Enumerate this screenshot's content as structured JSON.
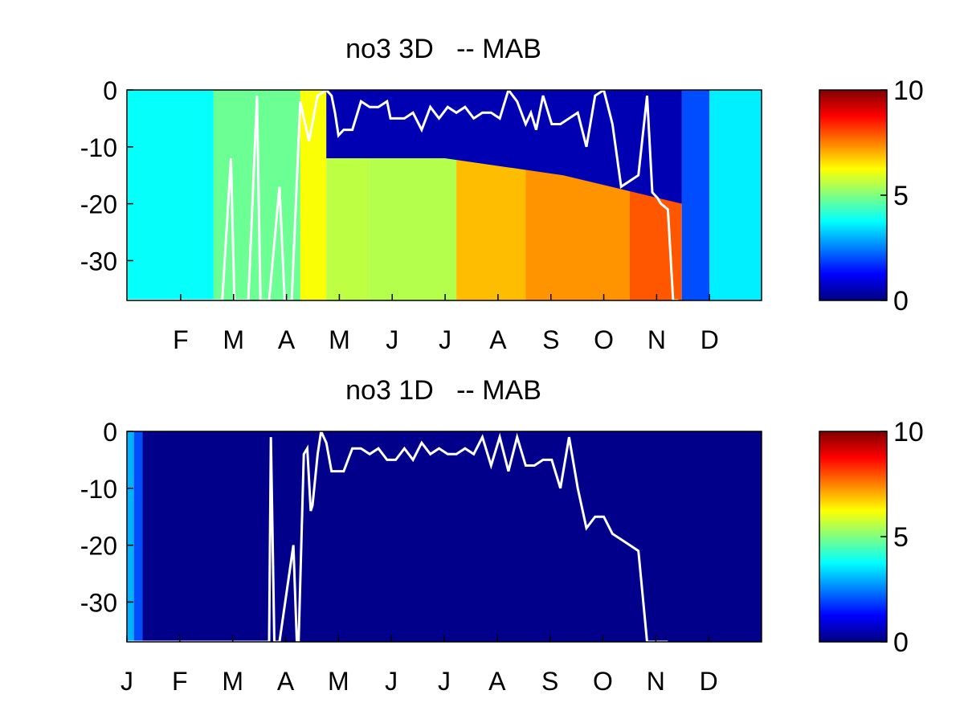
{
  "chart_data": [
    {
      "type": "heatmap",
      "title": "no3 3D   -- MAB",
      "ylim": [
        -37,
        0
      ],
      "y_ticks": [
        "0",
        "-10",
        "-20",
        "-30"
      ],
      "x_ticks": [
        "F",
        "M",
        "A",
        "M",
        "J",
        "J",
        "A",
        "S",
        "O",
        "N",
        "D"
      ],
      "colorbar": {
        "range": [
          0,
          10
        ],
        "ticks": [
          "10",
          "5",
          "0"
        ],
        "colormap": "jet"
      },
      "grid": false,
      "heatmap_columns": [
        {
          "days": [
            0,
            50
          ],
          "value": 3.8
        },
        {
          "days": [
            50,
            100
          ],
          "value": 4.8
        },
        {
          "days": [
            100,
            115
          ],
          "value": 6.2
        },
        {
          "days": [
            115,
            140
          ],
          "value": 5.6
        },
        {
          "days": [
            140,
            190
          ],
          "value": 5.5
        },
        {
          "days": [
            190,
            230
          ],
          "value": 6.9
        },
        {
          "days": [
            230,
            290
          ],
          "value": 7.3
        },
        {
          "days": [
            290,
            320
          ],
          "value": 7.9
        },
        {
          "days": [
            320,
            336
          ],
          "value": 2.0
        },
        {
          "days": [
            336,
            366
          ],
          "value": 3.6
        }
      ],
      "surface_low_layer": {
        "days": [
          115,
          320
        ],
        "depths": [
          0,
          -12,
          -15,
          -20
        ],
        "value": 0.5
      },
      "mixed_layer_depth": {
        "days": [
          0,
          55,
          60,
          62,
          70,
          75,
          77,
          82,
          88,
          91,
          95,
          100,
          105,
          110,
          115,
          118,
          120,
          122,
          125,
          130,
          135,
          140,
          145,
          150,
          152,
          160,
          165,
          170,
          175,
          180,
          185,
          190,
          195,
          200,
          205,
          210,
          215,
          220,
          225,
          230,
          233,
          236,
          240,
          245,
          250,
          255,
          260,
          265,
          270,
          275,
          280,
          285,
          290,
          295,
          300,
          303,
          306,
          308,
          312,
          315,
          318
        ],
        "depth": [
          -37,
          -37,
          -12,
          -37,
          -37,
          -1,
          -37,
          -37,
          -17,
          -37,
          -37,
          -2,
          -9,
          -1,
          0,
          -1,
          -4,
          -8,
          -7,
          -7,
          -2,
          -3,
          -3,
          -2,
          -5,
          -5,
          -4,
          -7,
          -3,
          -5,
          -3,
          -4,
          -3,
          -5,
          -4,
          -4,
          -5,
          0,
          -2,
          -6,
          -4,
          -7,
          -1,
          -6,
          -6,
          -5,
          -4,
          -10,
          -1,
          0,
          -6,
          -17,
          -16,
          -15,
          -1,
          -18,
          -19,
          -20,
          -21,
          -37,
          -37
        ]
      }
    },
    {
      "type": "heatmap",
      "title": "no3 1D   -- MAB",
      "ylim": [
        -37,
        0
      ],
      "y_ticks": [
        "0",
        "-10",
        "-20",
        "-30"
      ],
      "x_ticks": [
        "J",
        "F",
        "M",
        "A",
        "M",
        "J",
        "J",
        "A",
        "S",
        "O",
        "N",
        "D"
      ],
      "colorbar": {
        "range": [
          0,
          10
        ],
        "ticks": [
          "10",
          "5",
          "0"
        ],
        "colormap": "jet"
      },
      "grid": false,
      "heatmap_columns": [
        {
          "days": [
            0,
            4
          ],
          "value": 3.0
        },
        {
          "days": [
            4,
            9
          ],
          "value": 2.0
        },
        {
          "days": [
            9,
            366
          ],
          "value": 0.1
        }
      ],
      "mixed_layer_depth": {
        "days": [
          0,
          82,
          83,
          85,
          88,
          96,
          98,
          99,
          102,
          104,
          106,
          107,
          110,
          112,
          115,
          118,
          120,
          125,
          130,
          135,
          140,
          145,
          150,
          155,
          160,
          165,
          170,
          175,
          180,
          185,
          190,
          195,
          200,
          205,
          210,
          215,
          220,
          225,
          230,
          235,
          240,
          245,
          250,
          255,
          260,
          265,
          270,
          275,
          280,
          285,
          290,
          295,
          300,
          303,
          306,
          309,
          312
        ],
        "depth": [
          -37,
          -37,
          -1,
          -37,
          -37,
          -20,
          -37,
          -37,
          -4,
          -3,
          -14,
          -13,
          -4,
          0,
          -2,
          -7,
          -7,
          -7,
          -3,
          -3,
          -4,
          -3,
          -5,
          -5,
          -3,
          -5,
          -2,
          -4,
          -3,
          -4,
          -4,
          -3,
          -4,
          -1,
          -6,
          -1,
          -7,
          -1,
          -6,
          -6,
          -5,
          -5,
          -10,
          -1,
          -10,
          -17,
          -15,
          -15,
          -18,
          -19,
          -20,
          -21,
          -37,
          -37,
          -37,
          -37,
          -37
        ]
      }
    }
  ]
}
